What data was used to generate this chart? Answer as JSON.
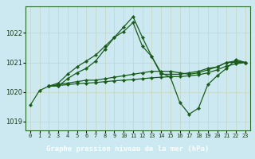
{
  "title": "Graphe pression niveau de la mer (hPa)",
  "bg_color": "#cce8f0",
  "title_bg": "#2d6b2d",
  "title_color": "#ffffff",
  "grid_color": "#c8d8c8",
  "line_color": "#1a5c1a",
  "x_labels": [
    "0",
    "1",
    "2",
    "3",
    "4",
    "5",
    "6",
    "7",
    "8",
    "9",
    "10",
    "11",
    "12",
    "13",
    "14",
    "15",
    "16",
    "17",
    "18",
    "19",
    "20",
    "21",
    "22",
    "23"
  ],
  "ylim": [
    1018.7,
    1022.9
  ],
  "yticks": [
    1019,
    1020,
    1021,
    1022
  ],
  "series": [
    [
      1019.55,
      1020.05,
      1020.2,
      1020.2,
      1020.45,
      1020.65,
      1020.8,
      1021.05,
      1021.45,
      1021.85,
      1022.05,
      1022.35,
      1021.55,
      1021.2,
      1020.6,
      1020.6,
      1020.6,
      1020.65,
      1020.7,
      1020.8,
      1020.85,
      1021.0,
      1021.05,
      1021.0
    ],
    [
      null,
      null,
      1020.2,
      1020.25,
      1020.3,
      1020.35,
      1020.4,
      1020.4,
      1020.45,
      1020.5,
      1020.55,
      1020.6,
      1020.65,
      1020.7,
      1020.7,
      1020.7,
      1020.65,
      1020.6,
      1020.65,
      1020.75,
      1020.85,
      1021.0,
      1021.0,
      1021.0
    ],
    [
      null,
      null,
      1020.2,
      1020.22,
      1020.25,
      1020.28,
      1020.3,
      1020.32,
      1020.35,
      1020.38,
      1020.4,
      1020.42,
      1020.45,
      1020.48,
      1020.5,
      1020.52,
      1020.52,
      1020.55,
      1020.58,
      1020.65,
      1020.75,
      1020.88,
      1020.95,
      1021.0
    ],
    [
      null,
      null,
      1020.2,
      1020.3,
      1020.6,
      1020.85,
      1021.05,
      1021.25,
      1021.55,
      1021.85,
      1022.2,
      1022.55,
      1021.85,
      1021.2,
      1020.65,
      1020.5,
      1019.65,
      1019.25,
      1019.45,
      1020.25,
      1020.55,
      1020.8,
      1021.1,
      1021.0
    ]
  ]
}
